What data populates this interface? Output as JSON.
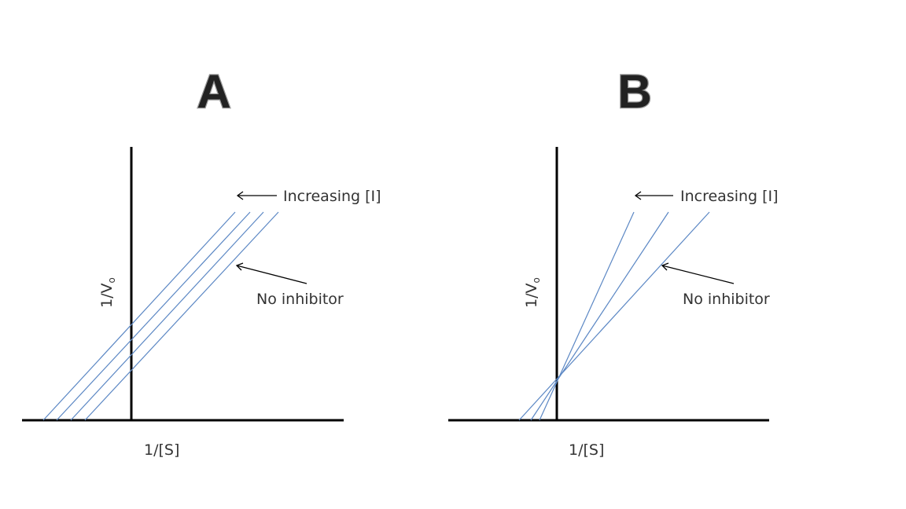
{
  "panels": [
    {
      "title": "A",
      "y_axis_label": "1/V",
      "y_axis_label_subscript": "o",
      "x_axis_label": "1/[S]",
      "increasing_label": "Increasing [I]",
      "no_inhibitor_label": "No inhibitor",
      "line_color": "#5b87c4"
    },
    {
      "title": "B",
      "y_axis_label": "1/V",
      "y_axis_label_subscript": "o",
      "x_axis_label": "1/[S]",
      "increasing_label": "Increasing [I]",
      "no_inhibitor_label": "No inhibitor",
      "line_color": "#5b87c4"
    }
  ]
}
